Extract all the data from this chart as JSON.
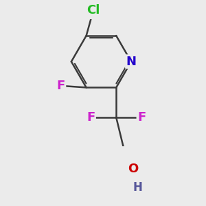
{
  "bg_color": "#ebebeb",
  "bond_color": "#3a3a3a",
  "bond_width": 1.8,
  "atoms": {
    "N": {
      "color": "#2200cc",
      "fontsize": 13,
      "fontweight": "bold"
    },
    "Cl": {
      "color": "#22bb22",
      "fontsize": 13,
      "fontweight": "bold"
    },
    "F": {
      "color": "#cc22cc",
      "fontsize": 13,
      "fontweight": "bold"
    },
    "O": {
      "color": "#cc0000",
      "fontsize": 13,
      "fontweight": "bold"
    },
    "H": {
      "color": "#555599",
      "fontsize": 12,
      "fontweight": "bold"
    }
  }
}
